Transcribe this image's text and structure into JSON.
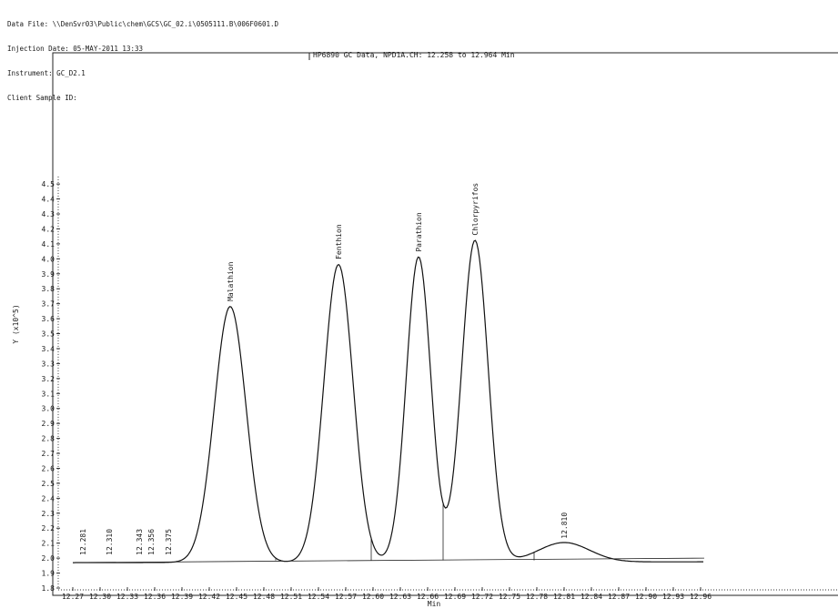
{
  "header": {
    "data_file": "Data File: \\\\DenSvr03\\Public\\chem\\GCS\\GC_02.i\\0505111.B\\006F0601.D",
    "injection_date": "Injection Date: 05-MAY-2011 13:33",
    "instrument": "Instrument: GC_D2.1",
    "client_sample_id": "Client Sample ID:"
  },
  "chart_data": {
    "type": "line",
    "title": "HP6890 GC Data, NPD1A.CH:  12.258 to 12.964 Min",
    "xlabel": "Min",
    "ylabel": "Y (x10^5)",
    "xlim": [
      12.258,
      12.964
    ],
    "ylim": [
      1.8,
      4.55
    ],
    "x_ticks": [
      "12.27",
      "12.30",
      "12.33",
      "12.36",
      "12.39",
      "12.42",
      "12.45",
      "12.48",
      "12.51",
      "12.54",
      "12.57",
      "12.60",
      "12.63",
      "12.66",
      "12.69",
      "12.72",
      "12.75",
      "12.78",
      "12.81",
      "12.84",
      "12.87",
      "12.90",
      "12.93",
      "12.96"
    ],
    "y_ticks": [
      "1.8",
      "1.9",
      "2.0",
      "2.1",
      "2.2",
      "2.3",
      "2.4",
      "2.5",
      "2.6",
      "2.7",
      "2.8",
      "2.9",
      "3.0",
      "3.1",
      "3.2",
      "3.3",
      "3.4",
      "3.5",
      "3.6",
      "3.7",
      "3.8",
      "3.9",
      "4.0",
      "4.1",
      "4.2",
      "4.3",
      "4.4",
      "4.5"
    ],
    "grid": false,
    "baseline": 1.97,
    "peaks": [
      {
        "name": "Malathion",
        "rt": 12.443,
        "height": 3.68
      },
      {
        "name": "Fenthion",
        "rt": 12.562,
        "height": 3.96
      },
      {
        "name": "Parathion",
        "rt": 12.65,
        "height": 4.01
      },
      {
        "name": "Chlorpyrifos",
        "rt": 12.712,
        "height": 4.12
      },
      {
        "name": "",
        "rt": 12.81,
        "height": 2.1
      }
    ],
    "retention_labels": [
      "12.281",
      "12.310",
      "12.343",
      "12.356",
      "12.375",
      "12.810"
    ],
    "separators": [
      12.493,
      12.598,
      12.677,
      12.777
    ]
  }
}
